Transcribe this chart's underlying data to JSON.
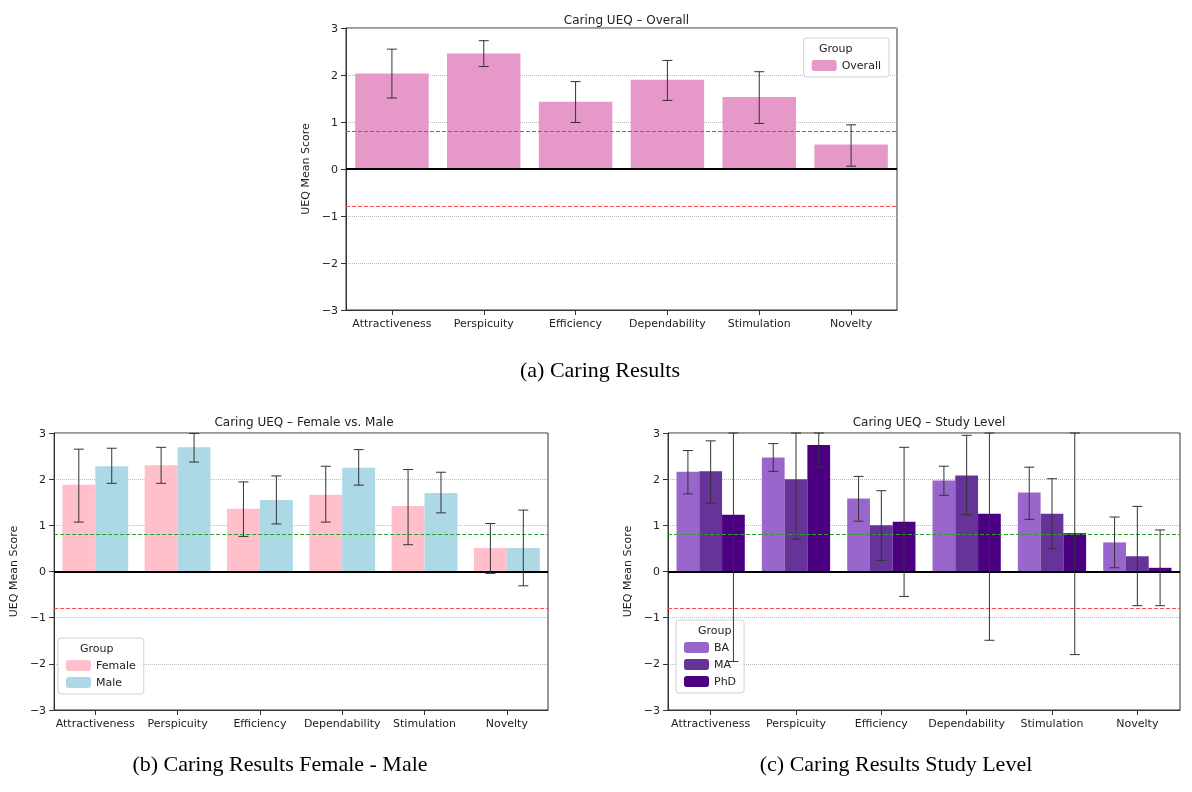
{
  "chart_data": [
    {
      "type": "bar",
      "title": "Caring UEQ – Overall",
      "ylabel": "UEQ Mean Score",
      "legend_title": "Group",
      "legend": "top right",
      "grid": "y",
      "categories": [
        "Attractiveness",
        "Perspicuity",
        "Efficiency",
        "Dependability",
        "Stimulation",
        "Novelty"
      ],
      "series": [
        {
          "name": "Overall",
          "color": "#e699c9",
          "values": [
            2.03,
            2.46,
            1.43,
            1.9,
            1.53,
            0.52
          ],
          "errors": [
            [
              1.51,
              2.55
            ],
            [
              2.18,
              2.73
            ],
            [
              0.99,
              1.86
            ],
            [
              1.46,
              2.31
            ],
            [
              0.97,
              2.07
            ],
            [
              0.06,
              0.94
            ]
          ]
        }
      ],
      "ylim": [
        -3,
        3
      ],
      "yticks": [
        -3,
        -2,
        -1,
        0,
        1,
        2,
        3
      ],
      "ref_lines": [
        {
          "axis": "y",
          "value": 0.8,
          "color": "#2ca02c",
          "line_style": "dashed"
        },
        {
          "axis": "y",
          "value": -0.8,
          "color": "#ff4d4d",
          "line_style": "dashed"
        },
        {
          "axis": "y",
          "value": 0,
          "color": "#000000",
          "line_style": "solid"
        }
      ],
      "annotations": [
        "(a) Caring Results"
      ]
    },
    {
      "type": "bar",
      "title": "Caring UEQ – Female vs. Male",
      "ylabel": "UEQ Mean Score",
      "legend_title": "Group",
      "legend": "bottom left",
      "grid": "y",
      "categories": [
        "Attractiveness",
        "Perspicuity",
        "Efficiency",
        "Dependability",
        "Stimulation",
        "Novelty"
      ],
      "series": [
        {
          "name": "Female",
          "color": "#ffc0cb",
          "values": [
            1.88,
            2.3,
            1.36,
            1.66,
            1.42,
            0.51
          ],
          "errors": [
            [
              1.07,
              2.65
            ],
            [
              1.91,
              2.69
            ],
            [
              0.76,
              1.94
            ],
            [
              1.07,
              2.28
            ],
            [
              0.58,
              2.21
            ],
            [
              -0.04,
              1.04
            ]
          ]
        },
        {
          "name": "Male",
          "color": "#add8e6",
          "values": [
            2.28,
            2.69,
            1.55,
            2.25,
            1.7,
            0.51
          ],
          "errors": [
            [
              1.91,
              2.67
            ],
            [
              2.37,
              2.99
            ],
            [
              1.03,
              2.07
            ],
            [
              1.87,
              2.64
            ],
            [
              1.27,
              2.15
            ],
            [
              -0.31,
              1.33
            ]
          ]
        }
      ],
      "ylim": [
        -3,
        3
      ],
      "yticks": [
        -3,
        -2,
        -1,
        0,
        1,
        2,
        3
      ],
      "ref_lines": [
        {
          "axis": "y",
          "value": 0.8,
          "color": "#2ca02c",
          "line_style": "dashed"
        },
        {
          "axis": "y",
          "value": -0.8,
          "color": "#ff4d4d",
          "line_style": "dashed"
        },
        {
          "axis": "y",
          "value": 0,
          "color": "#000000",
          "line_style": "solid"
        }
      ],
      "annotations": [
        "(b) Caring Results Female - Male"
      ]
    },
    {
      "type": "bar",
      "title": "Caring UEQ – Study Level",
      "ylabel": "UEQ Mean Score",
      "legend_title": "Group",
      "legend": "bottom left",
      "grid": "y",
      "categories": [
        "Attractiveness",
        "Perspicuity",
        "Efficiency",
        "Dependability",
        "Stimulation",
        "Novelty"
      ],
      "series": [
        {
          "name": "BA",
          "color": "#9966cc",
          "values": [
            2.16,
            2.47,
            1.58,
            1.97,
            1.71,
            0.63
          ],
          "errors": [
            [
              1.68,
              2.62
            ],
            [
              2.17,
              2.77
            ],
            [
              1.09,
              2.06
            ],
            [
              1.65,
              2.28
            ],
            [
              1.13,
              2.26
            ],
            [
              0.08,
              1.18
            ]
          ]
        },
        {
          "name": "MA",
          "color": "#663399",
          "values": [
            2.17,
            2.0,
            1.0,
            2.08,
            1.25,
            0.33
          ],
          "errors": [
            [
              1.48,
              2.83
            ],
            [
              0.7,
              3
            ],
            [
              0.24,
              1.75
            ],
            [
              1.23,
              2.95
            ],
            [
              0.5,
              2.01
            ],
            [
              -0.74,
              1.41
            ]
          ]
        },
        {
          "name": "PhD",
          "color": "#4b0082",
          "values": [
            1.23,
            2.74,
            1.08,
            1.25,
            0.83,
            0.08
          ],
          "errors": [
            [
              -1.95,
              3
            ],
            [
              2.26,
              3
            ],
            [
              -0.54,
              2.69
            ],
            [
              -1.49,
              3
            ],
            [
              -1.8,
              3
            ],
            [
              -0.74,
              0.9
            ]
          ]
        }
      ],
      "ylim": [
        -3,
        3
      ],
      "yticks": [
        -3,
        -2,
        -1,
        0,
        1,
        2,
        3
      ],
      "ref_lines": [
        {
          "axis": "y",
          "value": 0.8,
          "color": "#2ca02c",
          "line_style": "dashed"
        },
        {
          "axis": "y",
          "value": -0.8,
          "color": "#ff4d4d",
          "line_style": "dashed"
        },
        {
          "axis": "y",
          "value": 0,
          "color": "#000000",
          "line_style": "solid"
        }
      ],
      "annotations": [
        "(c) Caring Results Study Level"
      ]
    }
  ]
}
